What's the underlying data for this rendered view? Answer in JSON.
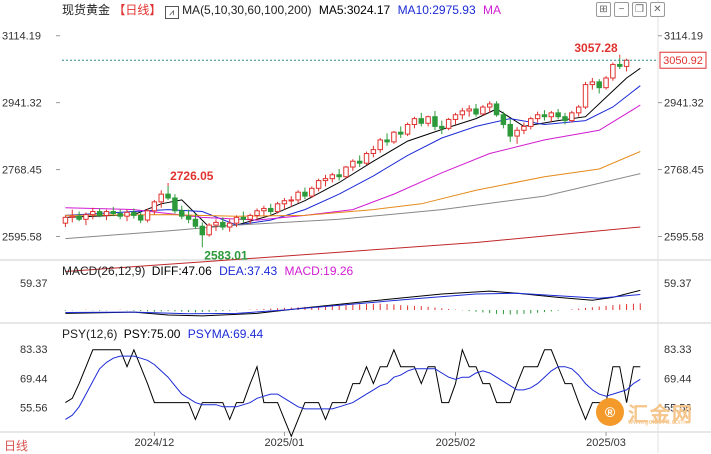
{
  "header": {
    "symbol": "现货黄金",
    "period_tag": "【日线】",
    "ma_params": "MA(5,10,30,60,100,200)",
    "ma5": "MA5:3024.17",
    "ma10": "MA10:2975.93",
    "ma30": "MA"
  },
  "macd_header": {
    "title": "MACD(26,12,9)",
    "diff": "DIFF:47.06",
    "dea": "DEA:37.43",
    "macd": "MACD:19.26"
  },
  "psy_header": {
    "title": "PSY(12,6)",
    "psy": "PSY:75.00",
    "psyma": "PSYMA:69.44"
  },
  "footer": {
    "period": "日线"
  },
  "toolbar": {
    "icons": [
      "pin-icon",
      "minus-icon",
      "restore-icon",
      "close-icon"
    ]
  },
  "watermark": {
    "mark": "®",
    "name": "汇金网",
    "url": "www.gold678.com"
  },
  "colors": {
    "up": "#e0322f",
    "down": "#2c9a3a",
    "ma5": "#000000",
    "ma10": "#1c2bd6",
    "ma30": "#d21cd2",
    "ma60": "#e58a1a",
    "ma100": "#888888",
    "ma200": "#c0282a"
  },
  "chart_data": [
    {
      "type": "candlestick",
      "title": "现货黄金 日线",
      "ylim": [
        2540,
        3160
      ],
      "y_ticks": [
        "3114.19",
        "2941.32",
        "2768.45",
        "2595.58"
      ],
      "x_labels": [
        "2024/12",
        "2025/01",
        "2025/02",
        "2025/03"
      ],
      "current_price": "3050.92",
      "annotations": [
        {
          "text": "3057.28",
          "kind": "high"
        },
        {
          "text": "2726.05",
          "kind": "high"
        },
        {
          "text": "2583.01",
          "kind": "low"
        }
      ],
      "ohlc": [
        [
          2630,
          2650,
          2620,
          2645
        ],
        [
          2645,
          2665,
          2632,
          2648
        ],
        [
          2648,
          2660,
          2635,
          2640
        ],
        [
          2640,
          2658,
          2625,
          2652
        ],
        [
          2652,
          2670,
          2640,
          2660
        ],
        [
          2660,
          2668,
          2645,
          2650
        ],
        [
          2650,
          2665,
          2638,
          2660
        ],
        [
          2660,
          2672,
          2648,
          2655
        ],
        [
          2655,
          2665,
          2640,
          2648
        ],
        [
          2648,
          2665,
          2635,
          2658
        ],
        [
          2658,
          2668,
          2642,
          2650
        ],
        [
          2650,
          2660,
          2630,
          2638
        ],
        [
          2638,
          2668,
          2632,
          2662
        ],
        [
          2662,
          2690,
          2652,
          2685
        ],
        [
          2685,
          2715,
          2670,
          2705
        ],
        [
          2705,
          2726,
          2690,
          2695
        ],
        [
          2695,
          2705,
          2655,
          2662
        ],
        [
          2662,
          2675,
          2640,
          2648
        ],
        [
          2648,
          2665,
          2630,
          2640
        ],
        [
          2640,
          2655,
          2615,
          2622
        ],
        [
          2622,
          2632,
          2583,
          2600
        ],
        [
          2600,
          2630,
          2595,
          2625
        ],
        [
          2625,
          2640,
          2610,
          2632
        ],
        [
          2632,
          2645,
          2612,
          2620
        ],
        [
          2620,
          2640,
          2608,
          2630
        ],
        [
          2630,
          2650,
          2620,
          2645
        ],
        [
          2645,
          2660,
          2632,
          2640
        ],
        [
          2640,
          2655,
          2628,
          2650
        ],
        [
          2650,
          2668,
          2638,
          2662
        ],
        [
          2662,
          2675,
          2650,
          2668
        ],
        [
          2668,
          2680,
          2652,
          2660
        ],
        [
          2660,
          2685,
          2655,
          2680
        ],
        [
          2680,
          2695,
          2665,
          2688
        ],
        [
          2688,
          2700,
          2672,
          2690
        ],
        [
          2690,
          2715,
          2682,
          2710
        ],
        [
          2710,
          2722,
          2692,
          2700
        ],
        [
          2700,
          2725,
          2695,
          2720
        ],
        [
          2720,
          2745,
          2712,
          2740
        ],
        [
          2740,
          2755,
          2725,
          2745
        ],
        [
          2745,
          2760,
          2735,
          2755
        ],
        [
          2755,
          2770,
          2740,
          2750
        ],
        [
          2750,
          2778,
          2745,
          2775
        ],
        [
          2775,
          2795,
          2765,
          2790
        ],
        [
          2790,
          2805,
          2775,
          2785
        ],
        [
          2785,
          2815,
          2780,
          2810
        ],
        [
          2810,
          2830,
          2800,
          2820
        ],
        [
          2820,
          2850,
          2812,
          2845
        ],
        [
          2845,
          2862,
          2830,
          2840
        ],
        [
          2840,
          2868,
          2835,
          2865
        ],
        [
          2865,
          2880,
          2850,
          2860
        ],
        [
          2860,
          2890,
          2855,
          2885
        ],
        [
          2885,
          2905,
          2875,
          2900
        ],
        [
          2900,
          2915,
          2880,
          2888
        ],
        [
          2888,
          2908,
          2880,
          2905
        ],
        [
          2905,
          2920,
          2870,
          2880
        ],
        [
          2880,
          2895,
          2860,
          2875
        ],
        [
          2875,
          2902,
          2870,
          2898
        ],
        [
          2898,
          2915,
          2885,
          2910
        ],
        [
          2910,
          2928,
          2898,
          2920
        ],
        [
          2920,
          2935,
          2905,
          2925
        ],
        [
          2925,
          2938,
          2905,
          2912
        ],
        [
          2912,
          2935,
          2908,
          2930
        ],
        [
          2930,
          2945,
          2915,
          2938
        ],
        [
          2938,
          2945,
          2905,
          2910
        ],
        [
          2910,
          2918,
          2875,
          2885
        ],
        [
          2885,
          2898,
          2840,
          2855
        ],
        [
          2855,
          2878,
          2835,
          2870
        ],
        [
          2870,
          2890,
          2860,
          2880
        ],
        [
          2880,
          2905,
          2872,
          2900
        ],
        [
          2900,
          2918,
          2890,
          2910
        ],
        [
          2910,
          2922,
          2895,
          2905
        ],
        [
          2905,
          2920,
          2892,
          2915
        ],
        [
          2915,
          2925,
          2898,
          2905
        ],
        [
          2905,
          2915,
          2885,
          2895
        ],
        [
          2895,
          2920,
          2890,
          2915
        ],
        [
          2915,
          2935,
          2905,
          2930
        ],
        [
          2930,
          2995,
          2925,
          2988
        ],
        [
          2988,
          3005,
          2975,
          2995
        ],
        [
          2995,
          3002,
          2965,
          2980
        ],
        [
          2980,
          3010,
          2975,
          3005
        ],
        [
          3005,
          3045,
          2998,
          3040
        ],
        [
          3040,
          3057,
          3028,
          3035
        ],
        [
          3035,
          3055,
          3022,
          3051
        ]
      ],
      "ma": [
        {
          "name": "MA5",
          "values": [
            [
              0,
              2645
            ],
            [
              10,
              2652
            ],
            [
              14,
              2680
            ],
            [
              17,
              2690
            ],
            [
              21,
              2620
            ],
            [
              25,
              2625
            ],
            [
              30,
              2650
            ],
            [
              35,
              2688
            ],
            [
              40,
              2735
            ],
            [
              45,
              2790
            ],
            [
              50,
              2842
            ],
            [
              55,
              2872
            ],
            [
              60,
              2900
            ],
            [
              63,
              2925
            ],
            [
              67,
              2880
            ],
            [
              72,
              2895
            ],
            [
              76,
              2905
            ],
            [
              79,
              2955
            ],
            [
              82,
              3005
            ],
            [
              84,
              3030
            ]
          ]
        },
        {
          "name": "MA10",
          "values": [
            [
              0,
              2650
            ],
            [
              15,
              2665
            ],
            [
              20,
              2660
            ],
            [
              25,
              2625
            ],
            [
              30,
              2638
            ],
            [
              35,
              2665
            ],
            [
              40,
              2705
            ],
            [
              45,
              2752
            ],
            [
              50,
              2805
            ],
            [
              55,
              2850
            ],
            [
              60,
              2880
            ],
            [
              65,
              2900
            ],
            [
              70,
              2885
            ],
            [
              76,
              2895
            ],
            [
              80,
              2930
            ],
            [
              84,
              2985
            ]
          ]
        },
        {
          "name": "MA30",
          "values": [
            [
              0,
              2670
            ],
            [
              10,
              2665
            ],
            [
              20,
              2645
            ],
            [
              28,
              2638
            ],
            [
              35,
              2650
            ],
            [
              42,
              2665
            ],
            [
              48,
              2705
            ],
            [
              55,
              2760
            ],
            [
              62,
              2810
            ],
            [
              70,
              2845
            ],
            [
              78,
              2870
            ],
            [
              84,
              2935
            ]
          ]
        },
        {
          "name": "MA60",
          "values": [
            [
              0,
              2650
            ],
            [
              15,
              2652
            ],
            [
              25,
              2648
            ],
            [
              35,
              2650
            ],
            [
              45,
              2665
            ],
            [
              52,
              2680
            ],
            [
              60,
              2715
            ],
            [
              70,
              2750
            ],
            [
              78,
              2770
            ],
            [
              84,
              2815
            ]
          ]
        },
        {
          "name": "MA100",
          "values": [
            [
              0,
              2590
            ],
            [
              15,
              2610
            ],
            [
              25,
              2625
            ],
            [
              40,
              2640
            ],
            [
              55,
              2665
            ],
            [
              70,
              2700
            ],
            [
              84,
              2758
            ]
          ]
        },
        {
          "name": "MA200",
          "values": [
            [
              0,
              2505
            ],
            [
              20,
              2530
            ],
            [
              40,
              2555
            ],
            [
              60,
              2580
            ],
            [
              75,
              2605
            ],
            [
              84,
              2620
            ]
          ]
        }
      ]
    },
    {
      "type": "bar",
      "title": "MACD(26,12,9)",
      "y_ticks": [
        "59.37"
      ],
      "series": [
        {
          "name": "DIFF",
          "values": [
            [
              0,
              -8
            ],
            [
              10,
              -5
            ],
            [
              15,
              -12
            ],
            [
              20,
              -14
            ],
            [
              28,
              -8
            ],
            [
              35,
              5
            ],
            [
              45,
              22
            ],
            [
              55,
              38
            ],
            [
              62,
              45
            ],
            [
              66,
              40
            ],
            [
              72,
              30
            ],
            [
              77,
              23
            ],
            [
              80,
              30
            ],
            [
              84,
              47
            ]
          ]
        },
        {
          "name": "DEA",
          "values": [
            [
              0,
              -6
            ],
            [
              10,
              -5
            ],
            [
              18,
              -9
            ],
            [
              25,
              -8
            ],
            [
              32,
              0
            ],
            [
              42,
              14
            ],
            [
              52,
              28
            ],
            [
              60,
              38
            ],
            [
              66,
              40
            ],
            [
              72,
              34
            ],
            [
              78,
              28
            ],
            [
              84,
              37
            ]
          ]
        }
      ],
      "histogram_label": "MACD",
      "histogram": [
        -2,
        -1,
        0,
        1,
        -1,
        -2,
        -1,
        0,
        1,
        -1,
        -2,
        -3,
        -4,
        -5,
        -4,
        -3,
        -4,
        -5,
        -6,
        -7,
        -6,
        -5,
        -4,
        -3,
        -2,
        -1,
        0,
        1,
        2,
        3,
        4,
        5,
        6,
        7,
        8,
        9,
        10,
        11,
        12,
        13,
        14,
        14,
        15,
        16,
        17,
        18,
        18,
        17,
        16,
        14,
        13,
        12,
        11,
        9,
        7,
        5,
        3,
        1,
        -1,
        -3,
        -5,
        -7,
        -9,
        -11,
        -12,
        -13,
        -12,
        -11,
        -10,
        -8,
        -6,
        -4,
        -2,
        0,
        2,
        4,
        6,
        8,
        10,
        12,
        14,
        16,
        17,
        18,
        19
      ]
    },
    {
      "type": "line",
      "title": "PSY(12,6)",
      "y_ticks": [
        "83.33",
        "69.44",
        "55.56"
      ],
      "ylim": [
        45,
        90
      ],
      "series": [
        {
          "name": "PSY",
          "values": [
            58,
            60,
            67,
            75,
            83,
            83,
            83,
            83,
            83,
            75,
            83,
            75,
            67,
            58,
            58,
            58,
            58,
            58,
            58,
            50,
            58,
            58,
            58,
            58,
            50,
            58,
            58,
            67,
            75,
            58,
            58,
            58,
            50,
            42,
            50,
            58,
            58,
            58,
            50,
            58,
            58,
            58,
            67,
            67,
            75,
            67,
            75,
            75,
            83,
            75,
            75,
            75,
            67,
            75,
            75,
            58,
            58,
            67,
            83,
            75,
            75,
            67,
            67,
            58,
            58,
            58,
            67,
            75,
            75,
            75,
            83,
            83,
            75,
            67,
            67,
            58,
            50,
            58,
            58,
            58,
            75,
            75,
            58,
            75,
            75
          ]
        },
        {
          "name": "PSYMA",
          "values": [
            50,
            52,
            56,
            62,
            68,
            74,
            77,
            79,
            80,
            80,
            80,
            79,
            78,
            76,
            73,
            70,
            66,
            62,
            60,
            58,
            57,
            57,
            57,
            56,
            56,
            56,
            57,
            58,
            60,
            61,
            62,
            62,
            60,
            58,
            56,
            55,
            55,
            55,
            55,
            55,
            56,
            57,
            58,
            60,
            62,
            64,
            66,
            67,
            70,
            71,
            73,
            74,
            74,
            74,
            74,
            72,
            70,
            69,
            70,
            70,
            72,
            73,
            72,
            70,
            68,
            66,
            64,
            64,
            65,
            67,
            70,
            73,
            75,
            75,
            74,
            71,
            67,
            64,
            62,
            61,
            62,
            63,
            64,
            67,
            69
          ]
        }
      ]
    }
  ]
}
